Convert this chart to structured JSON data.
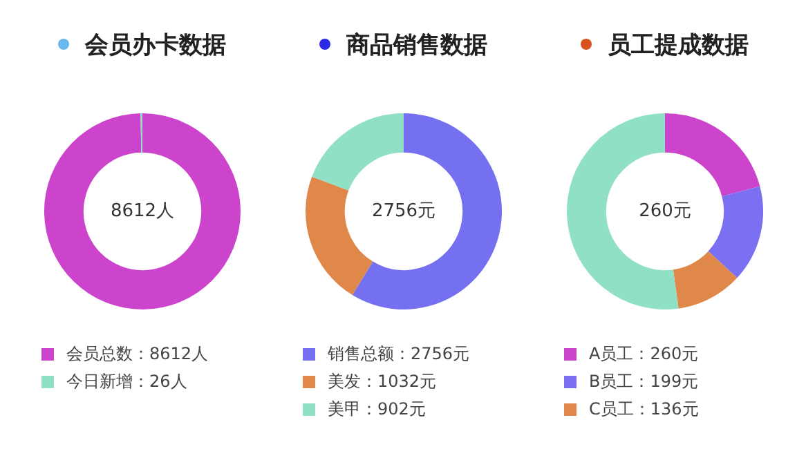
{
  "chart_data": [
    {
      "type": "donut",
      "title": "会员办卡数据",
      "categories": [
        "会员总数：8612人",
        "今日新增：26人"
      ],
      "values": [
        8612,
        26
      ],
      "colors": [
        "#cc44cc",
        "#8fe0c4"
      ],
      "annotations": [
        "8612人"
      ],
      "legend": "bottom"
    },
    {
      "type": "donut",
      "title": "商品销售数据",
      "categories": [
        "销售总额：2756元",
        "美发：1032元",
        "美甲：902元"
      ],
      "values": [
        2756,
        1032,
        902
      ],
      "colors": [
        "#7470f0",
        "#e0874a",
        "#8fe0c4"
      ],
      "annotations": [
        "2756元"
      ],
      "legend": "bottom"
    },
    {
      "type": "donut",
      "title": "员工提成数据",
      "categories": [
        "A员工：260元",
        "B员工：199元",
        "C员工：136元",
        null
      ],
      "values": [
        260,
        199,
        136,
        650
      ],
      "colors": [
        "#cc44cc",
        "#7b6ff2",
        "#e0874a",
        "#8fe0c4"
      ],
      "annotations": [
        "260元"
      ],
      "legend": "bottom"
    }
  ]
}
